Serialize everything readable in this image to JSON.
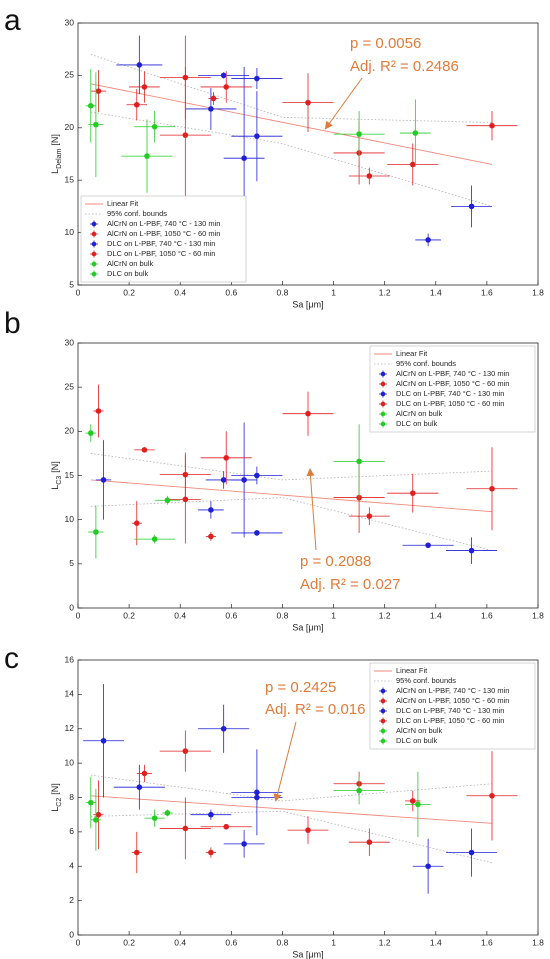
{
  "chart_data": [
    {
      "type": "scatter",
      "panel": "a",
      "xlabel": "Sa [μm]",
      "ylabel": {
        "main": "L",
        "sub": "Delam",
        "unit": "[N]"
      },
      "xlim": [
        0,
        1.8
      ],
      "xticks": [
        0,
        0.2,
        0.4,
        0.6,
        0.8,
        1,
        1.2,
        1.4,
        1.6,
        1.8
      ],
      "ylim": [
        5,
        30
      ],
      "yticks": [
        5,
        10,
        15,
        20,
        25,
        30
      ],
      "legend": "lower left",
      "annotations": [
        "p = 0.0056",
        "Adj. R² = 0.2486"
      ],
      "fit": {
        "name": "Linear Fit",
        "color": "#f08a7a",
        "x": [
          0.05,
          1.62
        ],
        "y": [
          24.2,
          16.5
        ]
      },
      "bounds": {
        "name": "95% conf. bounds",
        "color": "#b0b0b0",
        "x": [
          0.05,
          0.8,
          1.62
        ],
        "upper": [
          27,
          21,
          20.5
        ],
        "lower": [
          21.5,
          18.5,
          12.5
        ]
      },
      "series": [
        {
          "name": "AlCrN on L-PBF, 740 °C - 130 min",
          "color": "#1f1fd6",
          "x": [
            0.24,
            0.52,
            0.57,
            0.65
          ],
          "y": [
            26,
            21.8,
            25,
            17.1
          ],
          "xerr": [
            0.09,
            0.1,
            0.1,
            0.08
          ],
          "yerr": [
            2.8,
            2,
            0.3,
            8.7
          ]
        },
        {
          "name": "AlCrN on L-PBF, 1050 °C - 60 min",
          "color": "#e02020",
          "x": [
            0.08,
            0.23,
            0.26,
            0.42,
            0.42,
            0.53
          ],
          "y": [
            23.5,
            22.2,
            23.9,
            24.8,
            19.3,
            22.8
          ],
          "xerr": [
            0.03,
            0.04,
            0.06,
            0.1,
            0.1,
            0.02
          ],
          "yerr": [
            2,
            1.5,
            1.5,
            4,
            6.5,
            0.6
          ]
        },
        {
          "name": "DLC on L-PBF, 740 °C - 130 min",
          "color": "#1f1fd6",
          "x": [
            0.7,
            0.7,
            1.37,
            1.54
          ],
          "y": [
            24.7,
            19.2,
            9.3,
            12.5
          ],
          "xerr": [
            0.1,
            0.1,
            0.05,
            0.08
          ],
          "yerr": [
            1,
            4.3,
            0.6,
            2
          ]
        },
        {
          "name": "DLC on L-PBF, 1050 °C - 60 min",
          "color": "#e02020",
          "x": [
            0.58,
            0.9,
            1.1,
            1.14,
            1.31,
            1.62
          ],
          "y": [
            23.9,
            22.4,
            17.6,
            15.4,
            16.5,
            20.2
          ],
          "xerr": [
            0.1,
            0.1,
            0.1,
            0.08,
            0.1,
            0.1
          ],
          "yerr": [
            1.5,
            2.8,
            3,
            0.8,
            2,
            1.4
          ]
        },
        {
          "name": "AlCrN on bulk",
          "color": "#22cc22",
          "x": [
            0.05,
            0.07,
            0.3
          ],
          "y": [
            22.1,
            20.3,
            20.1
          ],
          "xerr": [
            0.02,
            0.03,
            0.08
          ],
          "yerr": [
            3.5,
            5,
            1.5
          ]
        },
        {
          "name": "DLC on bulk",
          "color": "#22cc22",
          "x": [
            0.27,
            1.1,
            1.32
          ],
          "y": [
            17.3,
            19.4,
            19.5
          ],
          "xerr": [
            0.1,
            0.1,
            0.06
          ],
          "yerr": [
            3.5,
            2.2,
            3.2
          ]
        }
      ]
    },
    {
      "type": "scatter",
      "panel": "b",
      "xlabel": "Sa [μm]",
      "ylabel": {
        "main": "L",
        "sub": "C3",
        "unit": "[N]"
      },
      "xlim": [
        0,
        1.8
      ],
      "xticks": [
        0,
        0.2,
        0.4,
        0.6,
        0.8,
        1,
        1.2,
        1.4,
        1.6,
        1.8
      ],
      "ylim": [
        0,
        30
      ],
      "yticks": [
        0,
        5,
        10,
        15,
        20,
        25,
        30
      ],
      "legend": "upper right",
      "annotations": [
        "p = 0.2088",
        "Adj. R² = 0.027"
      ],
      "fit": {
        "name": "Linear Fit",
        "color": "#f08a7a",
        "x": [
          0.05,
          1.62
        ],
        "y": [
          14.5,
          10.9
        ]
      },
      "bounds": {
        "name": "95% conf. bounds",
        "color": "#b0b0b0",
        "x": [
          0.05,
          0.8,
          1.62
        ],
        "upper": [
          17.5,
          14.5,
          15.5
        ],
        "lower": [
          11.5,
          12.5,
          6.5
        ]
      },
      "series": [
        {
          "name": "AlCrN on L-PBF, 740 °C - 130 min",
          "color": "#1f1fd6",
          "x": [
            0.1,
            0.52,
            0.57,
            0.65
          ],
          "y": [
            14.5,
            11.1,
            14.5,
            14.5
          ],
          "xerr": [
            0.03,
            0.05,
            0.07,
            0.05
          ],
          "yerr": [
            4.5,
            1,
            1,
            6.5
          ]
        },
        {
          "name": "AlCrN on L-PBF, 1050 °C - 60 min",
          "color": "#e02020",
          "x": [
            0.08,
            0.23,
            0.26,
            0.42,
            0.42,
            0.52
          ],
          "y": [
            22.3,
            9.6,
            17.9,
            15.1,
            12.3,
            8.1
          ],
          "xerr": [
            0.02,
            0.02,
            0.04,
            0.1,
            0.06,
            0.02
          ],
          "yerr": [
            3,
            2.5,
            0.3,
            2.5,
            5,
            0.5
          ]
        },
        {
          "name": "DLC on L-PBF, 740 °C - 130 min",
          "color": "#1f1fd6",
          "x": [
            0.7,
            0.7,
            1.37,
            1.54
          ],
          "y": [
            15,
            8.5,
            7.1,
            6.5
          ],
          "xerr": [
            0.1,
            0.1,
            0.1,
            0.1
          ],
          "yerr": [
            1,
            0.3,
            0.3,
            1.5
          ]
        },
        {
          "name": "DLC on L-PBF, 1050 °C - 60 min",
          "color": "#e02020",
          "x": [
            0.58,
            0.9,
            1.1,
            1.14,
            1.31,
            1.62
          ],
          "y": [
            17,
            22,
            12.5,
            10.4,
            13,
            13.5
          ],
          "xerr": [
            0.1,
            0.1,
            0.1,
            0.08,
            0.1,
            0.1
          ],
          "yerr": [
            3,
            2.5,
            4,
            1,
            2.2,
            4.7
          ]
        },
        {
          "name": "AlCrN on bulk",
          "color": "#22cc22",
          "x": [
            0.05,
            0.07,
            0.35
          ],
          "y": [
            19.8,
            8.6,
            12.2
          ],
          "xerr": [
            0.02,
            0.03,
            0.05
          ],
          "yerr": [
            1,
            3,
            0.5
          ]
        },
        {
          "name": "DLC on bulk",
          "color": "#22cc22",
          "x": [
            0.3,
            1.1
          ],
          "y": [
            7.8,
            16.6
          ],
          "xerr": [
            0.08,
            0.1
          ],
          "yerr": [
            0.5,
            4.2
          ]
        }
      ]
    },
    {
      "type": "scatter",
      "panel": "c",
      "xlabel": "Sa [μm]",
      "ylabel": {
        "main": "L",
        "sub": "C2",
        "unit": "[N]"
      },
      "xlim": [
        0,
        1.8
      ],
      "xticks": [
        0,
        0.2,
        0.4,
        0.6,
        0.8,
        1,
        1.2,
        1.4,
        1.6,
        1.8
      ],
      "ylim": [
        0,
        16
      ],
      "yticks": [
        0,
        2,
        4,
        6,
        8,
        10,
        12,
        14,
        16
      ],
      "legend": "upper right",
      "annotations": [
        "p = 0.2425",
        "Adj. R² = 0.016"
      ],
      "fit": {
        "name": "Linear Fit",
        "color": "#f08a7a",
        "x": [
          0.05,
          1.62
        ],
        "y": [
          8.1,
          6.5
        ]
      },
      "bounds": {
        "name": "95% conf. bounds",
        "color": "#b0b0b0",
        "x": [
          0.05,
          0.8,
          1.62
        ],
        "upper": [
          9.3,
          7.8,
          8.8
        ],
        "lower": [
          6.9,
          7.2,
          4.2
        ]
      },
      "series": [
        {
          "name": "AlCrN on L-PBF, 740 °C - 130 min",
          "color": "#1f1fd6",
          "x": [
            0.1,
            0.24,
            0.52,
            0.57,
            0.65
          ],
          "y": [
            11.3,
            8.6,
            7,
            12,
            5.3
          ],
          "xerr": [
            0.08,
            0.1,
            0.08,
            0.1,
            0.08
          ],
          "yerr": [
            3.3,
            1.3,
            0.3,
            1.4,
            0.8
          ]
        },
        {
          "name": "AlCrN on L-PBF, 1050 °C - 60 min",
          "color": "#e02020",
          "x": [
            0.08,
            0.23,
            0.26,
            0.42,
            0.42,
            0.52
          ],
          "y": [
            7,
            4.8,
            9.4,
            10.7,
            6.2,
            4.8
          ],
          "xerr": [
            0.02,
            0.02,
            0.03,
            0.1,
            0.1,
            0.02
          ],
          "yerr": [
            2,
            1.2,
            0.5,
            1.2,
            1.8,
            0.3
          ]
        },
        {
          "name": "DLC on L-PBF, 740 °C - 130 min",
          "color": "#1f1fd6",
          "x": [
            0.7,
            0.7,
            1.37,
            1.54
          ],
          "y": [
            8.3,
            8,
            4,
            4.8
          ],
          "xerr": [
            0.1,
            0.1,
            0.06,
            0.1
          ],
          "yerr": [
            2.5,
            0.4,
            1.6,
            1.4
          ]
        },
        {
          "name": "DLC on L-PBF, 1050 °C - 60 min",
          "color": "#e02020",
          "x": [
            0.58,
            0.9,
            1.1,
            1.14,
            1.31,
            1.62
          ],
          "y": [
            6.3,
            6.1,
            8.8,
            5.4,
            7.8,
            8.1
          ],
          "xerr": [
            0.1,
            0.08,
            0.1,
            0.08,
            0.03,
            0.1
          ],
          "yerr": [
            0.1,
            0.8,
            0.7,
            0.8,
            0.6,
            2.6
          ]
        },
        {
          "name": "AlCrN on bulk",
          "color": "#22cc22",
          "x": [
            0.05,
            0.07,
            0.3
          ],
          "y": [
            7.7,
            6.7,
            6.8
          ],
          "xerr": [
            0.02,
            0.02,
            0.04
          ],
          "yerr": [
            1.5,
            1.8,
            0.5
          ]
        },
        {
          "name": "DLC on bulk",
          "color": "#22cc22",
          "x": [
            0.35,
            1.1,
            1.33
          ],
          "y": [
            7.1,
            8.4,
            7.6
          ],
          "xerr": [
            0.02,
            0.1,
            0.05
          ],
          "yerr": [
            0.2,
            0.8,
            1.9
          ]
        }
      ]
    }
  ]
}
